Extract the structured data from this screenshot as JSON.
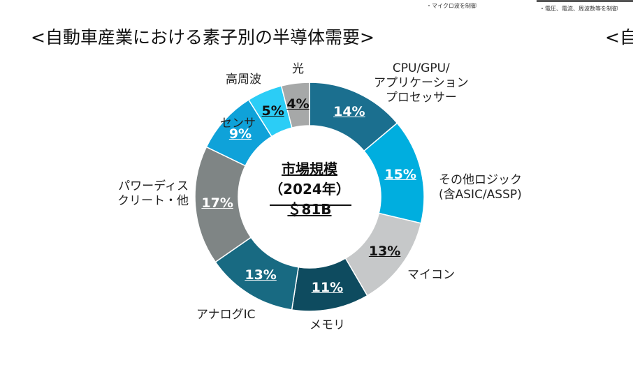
{
  "page": {
    "title": "<自動車産業における素子別の半導体需要>",
    "title_right": "<自",
    "top_note_left": "・マイクロ波を制御",
    "top_note_right": "・電圧、電流、周波数等を制御"
  },
  "chart_data": {
    "type": "pie",
    "donut": true,
    "title": "",
    "center_label": {
      "line1": "市場規模",
      "line2": "（2024年）",
      "line3": "＄81B"
    },
    "categories": [
      "CPU/GPU/アプリケーションプロセッサー",
      "その他ロジック(含ASIC/ASSP)",
      "マイコン",
      "メモリ",
      "アナログIC",
      "パワーディスクリート・他",
      "センサ",
      "高周波",
      "光"
    ],
    "label_lines": [
      [
        "CPU/GPU/",
        "アプリケーション",
        "プロセッサー"
      ],
      [
        "その他ロジック",
        "(含ASIC/ASSP)"
      ],
      [
        "マイコン"
      ],
      [
        "メモリ"
      ],
      [
        "アナログIC"
      ],
      [
        "パワーディス",
        "クリート・他"
      ],
      [
        "センサ"
      ],
      [
        "高周波"
      ],
      [
        "光"
      ]
    ],
    "values": [
      14,
      15,
      13,
      11,
      13,
      17,
      9,
      5,
      4
    ],
    "value_labels": [
      "14%",
      "15%",
      "13%",
      "11%",
      "13%",
      "17%",
      "9%",
      "5%",
      "4%"
    ],
    "colors": [
      "#1b6f8f",
      "#00aedf",
      "#c6c8c9",
      "#0e4b5f",
      "#186a82",
      "#7f8585",
      "#0fa2d9",
      "#2bcdf6",
      "#a6a8a8"
    ],
    "label_colors": [
      "#ffffff",
      "#ffffff",
      "#111111",
      "#ffffff",
      "#ffffff",
      "#ffffff",
      "#ffffff",
      "#111111",
      "#111111"
    ],
    "start": "top",
    "direction": "clockwise",
    "legend": "none"
  }
}
